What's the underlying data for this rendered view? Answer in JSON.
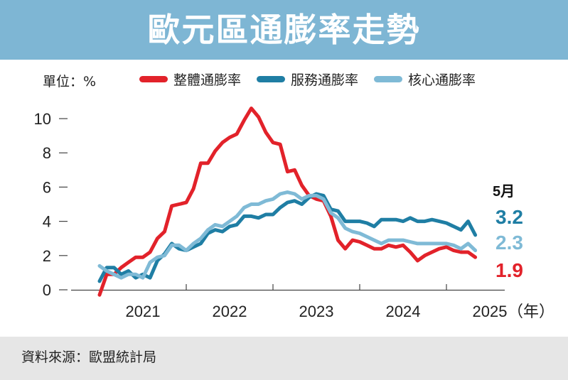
{
  "title": "歐元區通膨率走勢",
  "unit_label": "單位：%",
  "source": "資料來源：歐盟統計局",
  "x_unit": "（年）",
  "latest_month": "5月",
  "colors": {
    "headline": "#e2222a",
    "services": "#1f7ea4",
    "core": "#7fbad6",
    "title_bg": "#7eb6d4"
  },
  "chart_data": {
    "type": "line",
    "ylim": [
      0,
      10
    ],
    "yticks": [
      "0",
      "2",
      "4",
      "6",
      "8",
      "10"
    ],
    "xlim": [
      2021.0,
      2025.42
    ],
    "xtick_labels": [
      "2021",
      "2022",
      "2023",
      "2024",
      "2025"
    ],
    "legend_position": "top",
    "x": [
      2021.0,
      2021.083,
      2021.167,
      2021.25,
      2021.333,
      2021.417,
      2021.5,
      2021.583,
      2021.667,
      2021.75,
      2021.833,
      2021.917,
      2022.0,
      2022.083,
      2022.167,
      2022.25,
      2022.333,
      2022.417,
      2022.5,
      2022.583,
      2022.667,
      2022.75,
      2022.833,
      2022.917,
      2023.0,
      2023.083,
      2023.167,
      2023.25,
      2023.333,
      2023.417,
      2023.5,
      2023.583,
      2023.667,
      2023.75,
      2023.833,
      2023.917,
      2024.0,
      2024.083,
      2024.167,
      2024.25,
      2024.333,
      2024.417,
      2024.5,
      2024.583,
      2024.667,
      2024.75,
      2024.833,
      2024.917,
      2025.0,
      2025.083,
      2025.167,
      2025.25,
      2025.333
    ],
    "series": [
      {
        "name": "整體通膨率",
        "color": "#e2222a",
        "values": [
          -0.3,
          0.9,
          0.9,
          1.3,
          1.6,
          1.9,
          1.9,
          2.2,
          3.0,
          3.4,
          4.9,
          5.0,
          5.1,
          5.9,
          7.4,
          7.4,
          8.1,
          8.6,
          8.9,
          9.1,
          9.9,
          10.6,
          10.1,
          9.2,
          8.6,
          8.5,
          6.9,
          7.0,
          6.1,
          5.5,
          5.3,
          5.2,
          4.3,
          2.9,
          2.4,
          2.9,
          2.8,
          2.6,
          2.4,
          2.4,
          2.6,
          2.5,
          2.6,
          2.2,
          1.7,
          2.0,
          2.2,
          2.4,
          2.5,
          2.3,
          2.2,
          2.2,
          1.9
        ]
      },
      {
        "name": "服務通膨率",
        "color": "#1f7ea4",
        "values": [
          0.5,
          1.3,
          1.3,
          0.9,
          1.1,
          0.7,
          0.9,
          0.7,
          1.7,
          2.1,
          2.7,
          2.4,
          2.3,
          2.5,
          2.7,
          3.3,
          3.5,
          3.4,
          3.7,
          3.8,
          4.3,
          4.3,
          4.2,
          4.4,
          4.4,
          4.8,
          5.1,
          5.2,
          5.0,
          5.4,
          5.6,
          5.5,
          4.7,
          4.6,
          4.0,
          4.0,
          4.0,
          3.9,
          3.7,
          4.1,
          4.1,
          4.1,
          4.0,
          4.2,
          4.0,
          4.0,
          4.1,
          4.0,
          3.9,
          3.7,
          3.5,
          4.0,
          3.2
        ]
      },
      {
        "name": "核心通膨率",
        "color": "#7fbad6",
        "values": [
          1.4,
          1.1,
          0.9,
          0.7,
          0.9,
          0.9,
          0.7,
          1.6,
          1.9,
          2.0,
          2.6,
          2.6,
          2.3,
          2.7,
          3.0,
          3.5,
          3.8,
          3.7,
          4.0,
          4.3,
          4.8,
          5.0,
          5.0,
          5.2,
          5.3,
          5.6,
          5.7,
          5.6,
          5.3,
          5.5,
          5.5,
          5.3,
          4.5,
          4.2,
          3.6,
          3.4,
          3.3,
          3.1,
          2.9,
          2.7,
          2.9,
          2.9,
          2.9,
          2.8,
          2.7,
          2.7,
          2.7,
          2.7,
          2.7,
          2.6,
          2.4,
          2.7,
          2.3
        ]
      }
    ],
    "latest_labels": [
      {
        "series": "服務通膨率",
        "text": "3.2",
        "color": "#1f7ea4"
      },
      {
        "series": "核心通膨率",
        "text": "2.3",
        "color": "#7fbad6"
      },
      {
        "series": "整體通膨率",
        "text": "1.9",
        "color": "#e2222a"
      }
    ]
  }
}
